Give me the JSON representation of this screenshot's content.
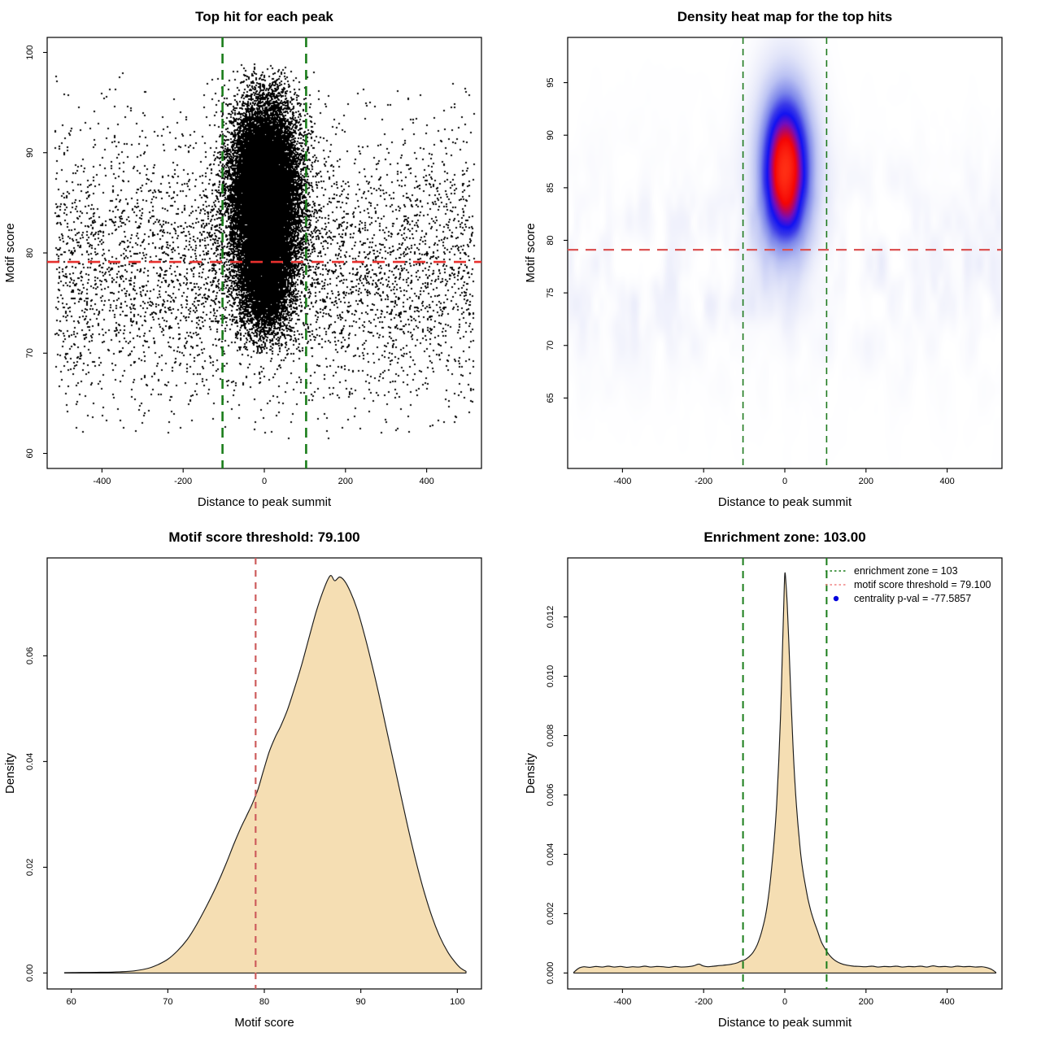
{
  "figure_background": "#ffffff",
  "colors": {
    "point_black": "#000000",
    "area_fill_wheat": "#f5deb3",
    "area_stroke": "#1a1a1a",
    "green_dashed": "#1a7d1a",
    "red_bright": "#e8312e",
    "red_soft": "#dc5454",
    "red_indian": "#cd5c5c",
    "legend_red": "#f08080",
    "legend_blue": "#0000dd",
    "axis_black": "#000000"
  },
  "chart_data": [
    {
      "panel": "top-left",
      "type": "scatter",
      "title": "Top hit for each peak",
      "xlabel": "Distance to peak summit",
      "ylabel": "Motif score",
      "xlim": [
        -535,
        535
      ],
      "ylim": [
        58.5,
        101.5
      ],
      "xticks": [
        {
          "v": -400,
          "label": "-400"
        },
        {
          "v": -200,
          "label": "-200"
        },
        {
          "v": 0,
          "label": "0"
        },
        {
          "v": 200,
          "label": "200"
        },
        {
          "v": 400,
          "label": "400"
        }
      ],
      "yticks": [
        {
          "v": 60,
          "label": "60"
        },
        {
          "v": 70,
          "label": "70"
        },
        {
          "v": 80,
          "label": "80"
        },
        {
          "v": 90,
          "label": "90"
        },
        {
          "v": 100,
          "label": "100"
        }
      ],
      "lines": [
        {
          "kind": "vline",
          "v": -103,
          "color": "#1a7d1a",
          "width": 2.6,
          "dash": [
            12,
            8
          ]
        },
        {
          "kind": "vline",
          "v": 103,
          "color": "#1a7d1a",
          "width": 2.6,
          "dash": [
            12,
            8
          ]
        },
        {
          "kind": "hline",
          "v": 79.1,
          "color": "#e8312e",
          "width": 2.6,
          "dash": [
            15,
            10
          ]
        }
      ],
      "generator": {
        "seed": 1234,
        "x_range": [
          -516,
          516
        ],
        "clusters": [
          {
            "n": 15000,
            "mx": 0,
            "sx": 38,
            "my": 86.4,
            "sy": 4.0,
            "ymin": 73,
            "ymax": 99
          },
          {
            "n": 6000,
            "mx": 1,
            "sx": 52,
            "my": 84.5,
            "sy": 5.5,
            "ymin": 70,
            "ymax": 98.5
          },
          {
            "n": 4500,
            "mx": 0,
            "sx": 30,
            "my": 77.2,
            "sy": 2.6,
            "ymin": 70,
            "ymax": 85
          },
          {
            "n": 4200,
            "uniform_x": true,
            "my": 78.5,
            "sy": 6.8,
            "ymin": 61.5,
            "ymax": 97.5
          },
          {
            "n": 280,
            "uniform_x": true,
            "uniform_y": true,
            "ymin": 62,
            "ymax": 98
          }
        ]
      }
    },
    {
      "panel": "top-right",
      "type": "heatmap",
      "title": "Density heat map for the top hits",
      "xlabel": "Distance to peak summit",
      "ylabel": "Motif score",
      "xlim": [
        -535,
        535
      ],
      "ylim": [
        58.3,
        99.3
      ],
      "xticks": [
        {
          "v": -400,
          "label": "-400"
        },
        {
          "v": -200,
          "label": "-200"
        },
        {
          "v": 0,
          "label": "0"
        },
        {
          "v": 200,
          "label": "200"
        },
        {
          "v": 400,
          "label": "400"
        }
      ],
      "yticks": [
        {
          "v": 65,
          "label": "65"
        },
        {
          "v": 70,
          "label": "70"
        },
        {
          "v": 75,
          "label": "75"
        },
        {
          "v": 80,
          "label": "80"
        },
        {
          "v": 85,
          "label": "85"
        },
        {
          "v": 90,
          "label": "90"
        },
        {
          "v": 95,
          "label": "95"
        }
      ],
      "lines": [
        {
          "kind": "vline",
          "v": -103,
          "color": "#1f7a1f",
          "width": 1.6,
          "dash": [
            8,
            6
          ]
        },
        {
          "kind": "vline",
          "v": 103,
          "color": "#1f7a1f",
          "width": 1.6,
          "dash": [
            8,
            6
          ]
        },
        {
          "kind": "hline",
          "v": 79.1,
          "color": "#dc5454",
          "width": 2.2,
          "dash": [
            13,
            9
          ]
        }
      ],
      "density_model": {
        "blob": {
          "cx": 2,
          "cy": 86.8,
          "sx": 45,
          "sy": 5.35
        },
        "band": {
          "center": 77.3,
          "sigma": 6.3,
          "amp": 0.075,
          "broad_amp": 0.018,
          "broad_sigma": 9.5
        },
        "noise": {
          "cell_x": 16,
          "cell_y": 55,
          "cell_x2": 8,
          "cell_y2": 26,
          "threshold": 0.22,
          "gain": 1.15
        }
      },
      "colormap": [
        [
          0.0,
          "#ffffff"
        ],
        [
          0.05,
          "#f2f3fc"
        ],
        [
          0.12,
          "#e2e5f9"
        ],
        [
          0.25,
          "#bcc3f3"
        ],
        [
          0.4,
          "#7c86ea"
        ],
        [
          0.52,
          "#3a3ae8"
        ],
        [
          0.62,
          "#1212f2"
        ],
        [
          0.72,
          "#6e0ec0"
        ],
        [
          0.8,
          "#b80560"
        ],
        [
          0.87,
          "#f50505"
        ],
        [
          1.0,
          "#ff2e14"
        ]
      ]
    },
    {
      "panel": "bottom-left",
      "type": "area",
      "title": "Motif score threshold: 79.100",
      "xlabel": "Motif score",
      "ylabel": "Density",
      "xlim": [
        57.5,
        102.5
      ],
      "ylim": [
        -0.00302,
        0.07852
      ],
      "xticks": [
        {
          "v": 60,
          "label": "60"
        },
        {
          "v": 70,
          "label": "70"
        },
        {
          "v": 80,
          "label": "80"
        },
        {
          "v": 90,
          "label": "90"
        },
        {
          "v": 100,
          "label": "100"
        }
      ],
      "yticks": [
        {
          "v": 0,
          "label": "0.00"
        },
        {
          "v": 0.02,
          "label": "0.02"
        },
        {
          "v": 0.04,
          "label": "0.04"
        },
        {
          "v": 0.06,
          "label": "0.06"
        }
      ],
      "lines": [
        {
          "kind": "vline",
          "v": 79.1,
          "color": "#cd5c5c",
          "width": 2.2,
          "dash": [
            8,
            7
          ]
        }
      ],
      "curve": [
        [
          59.3,
          8e-05
        ],
        [
          61,
          0.0001
        ],
        [
          63,
          0.00013
        ],
        [
          65,
          0.00022
        ],
        [
          66.5,
          0.0004
        ],
        [
          68,
          0.0009
        ],
        [
          69,
          0.0016
        ],
        [
          70,
          0.0026
        ],
        [
          71,
          0.0042
        ],
        [
          72,
          0.0063
        ],
        [
          73,
          0.0092
        ],
        [
          74,
          0.0126
        ],
        [
          75,
          0.0163
        ],
        [
          76,
          0.0205
        ],
        [
          76.8,
          0.0242
        ],
        [
          77.5,
          0.0272
        ],
        [
          78.1,
          0.0295
        ],
        [
          78.7,
          0.0318
        ],
        [
          79.3,
          0.0345
        ],
        [
          79.9,
          0.0382
        ],
        [
          80.5,
          0.0418
        ],
        [
          81.1,
          0.0445
        ],
        [
          81.7,
          0.0467
        ],
        [
          82.4,
          0.0498
        ],
        [
          83.1,
          0.0537
        ],
        [
          83.9,
          0.0585
        ],
        [
          84.7,
          0.0639
        ],
        [
          85.4,
          0.0685
        ],
        [
          86,
          0.0718
        ],
        [
          86.5,
          0.0741
        ],
        [
          86.9,
          0.0752
        ],
        [
          87.3,
          0.0742
        ],
        [
          87.8,
          0.0749
        ],
        [
          88.3,
          0.0742
        ],
        [
          88.9,
          0.0722
        ],
        [
          89.6,
          0.0689
        ],
        [
          90.3,
          0.0645
        ],
        [
          91,
          0.0595
        ],
        [
          91.8,
          0.0533
        ],
        [
          92.6,
          0.0466
        ],
        [
          93.4,
          0.0399
        ],
        [
          94.2,
          0.0332
        ],
        [
          95,
          0.0266
        ],
        [
          95.8,
          0.0205
        ],
        [
          96.6,
          0.0151
        ],
        [
          97.4,
          0.0105
        ],
        [
          98.2,
          0.0068
        ],
        [
          99,
          0.004
        ],
        [
          99.7,
          0.0022
        ],
        [
          100.3,
          0.001
        ],
        [
          100.9,
          0.0003
        ]
      ]
    },
    {
      "panel": "bottom-right",
      "type": "area",
      "title": "Enrichment zone: 103.00",
      "xlabel": "Distance to peak summit",
      "ylabel": "Density",
      "xlim": [
        -535,
        535
      ],
      "ylim": [
        -0.000538,
        0.013988
      ],
      "xticks": [
        {
          "v": -400,
          "label": "-400"
        },
        {
          "v": -200,
          "label": "-200"
        },
        {
          "v": 0,
          "label": "0"
        },
        {
          "v": 200,
          "label": "200"
        },
        {
          "v": 400,
          "label": "400"
        }
      ],
      "yticks": [
        {
          "v": 0,
          "label": "0.000"
        },
        {
          "v": 0.002,
          "label": "0.002"
        },
        {
          "v": 0.004,
          "label": "0.004"
        },
        {
          "v": 0.006,
          "label": "0.006"
        },
        {
          "v": 0.008,
          "label": "0.008"
        },
        {
          "v": 0.01,
          "label": "0.010"
        },
        {
          "v": 0.012,
          "label": "0.012"
        }
      ],
      "lines": [
        {
          "kind": "vline",
          "v": -103,
          "color": "#1a7d1a",
          "width": 2.0,
          "dash": [
            9,
            7
          ]
        },
        {
          "kind": "vline",
          "v": 103,
          "color": "#1a7d1a",
          "width": 2.0,
          "dash": [
            9,
            7
          ]
        }
      ],
      "legend": {
        "items": [
          {
            "type": "line",
            "color": "#1a7d1a",
            "dash": [
              2.5,
              3
            ],
            "label": "enrichment zone = 103"
          },
          {
            "type": "line",
            "color": "#f08080",
            "dash": [
              2.5,
              3
            ],
            "label": "motif score threshold = 79.100"
          },
          {
            "type": "point",
            "color": "#0000dd",
            "label": "centrality p-val = -77.5857"
          }
        ]
      },
      "curve": [
        [
          -520,
          2e-05
        ],
        [
          -512,
          0.00012
        ],
        [
          -505,
          0.00018
        ],
        [
          -495,
          0.00021
        ],
        [
          -480,
          0.00019
        ],
        [
          -465,
          0.00022
        ],
        [
          -450,
          0.0002
        ],
        [
          -435,
          0.00023
        ],
        [
          -420,
          0.0002
        ],
        [
          -405,
          0.00022
        ],
        [
          -390,
          0.00019
        ],
        [
          -375,
          0.00021
        ],
        [
          -360,
          0.0002
        ],
        [
          -345,
          0.00023
        ],
        [
          -330,
          0.0002
        ],
        [
          -315,
          0.00022
        ],
        [
          -300,
          0.00021
        ],
        [
          -285,
          0.00019
        ],
        [
          -270,
          0.00022
        ],
        [
          -255,
          0.0002
        ],
        [
          -240,
          0.00021
        ],
        [
          -225,
          0.00024
        ],
        [
          -212,
          0.0003
        ],
        [
          -202,
          0.00024
        ],
        [
          -190,
          0.00021
        ],
        [
          -175,
          0.00023
        ],
        [
          -160,
          0.00025
        ],
        [
          -145,
          0.00027
        ],
        [
          -130,
          0.0003
        ],
        [
          -118,
          0.00034
        ],
        [
          -108,
          0.0004
        ],
        [
          -98,
          0.00045
        ],
        [
          -88,
          0.00055
        ],
        [
          -78,
          0.0007
        ],
        [
          -68,
          0.00095
        ],
        [
          -58,
          0.00135
        ],
        [
          -48,
          0.0019
        ],
        [
          -40,
          0.0026
        ],
        [
          -32,
          0.0036
        ],
        [
          -26,
          0.0045
        ],
        [
          -20,
          0.0057
        ],
        [
          -15,
          0.0071
        ],
        [
          -10,
          0.0089
        ],
        [
          -6,
          0.0108
        ],
        [
          -3,
          0.0122
        ],
        [
          0,
          0.01345
        ],
        [
          3,
          0.0131
        ],
        [
          6,
          0.0124
        ],
        [
          10,
          0.0111
        ],
        [
          15,
          0.0093
        ],
        [
          20,
          0.0077
        ],
        [
          25,
          0.0064
        ],
        [
          30,
          0.0054
        ],
        [
          35,
          0.0046
        ],
        [
          40,
          0.0039
        ],
        [
          45,
          0.0034
        ],
        [
          50,
          0.003
        ],
        [
          57,
          0.0025
        ],
        [
          65,
          0.00205
        ],
        [
          73,
          0.0017
        ],
        [
          81,
          0.0014
        ],
        [
          90,
          0.00105
        ],
        [
          100,
          0.0008
        ],
        [
          110,
          0.0006
        ],
        [
          120,
          0.00046
        ],
        [
          130,
          0.00037
        ],
        [
          142,
          0.0003
        ],
        [
          155,
          0.00026
        ],
        [
          170,
          0.00023
        ],
        [
          185,
          0.00022
        ],
        [
          200,
          0.00021
        ],
        [
          215,
          0.00023
        ],
        [
          230,
          0.0002
        ],
        [
          245,
          0.00022
        ],
        [
          260,
          0.00021
        ],
        [
          275,
          0.00023
        ],
        [
          290,
          0.0002
        ],
        [
          305,
          0.00022
        ],
        [
          320,
          0.00021
        ],
        [
          335,
          0.00023
        ],
        [
          350,
          0.0002
        ],
        [
          365,
          0.00024
        ],
        [
          380,
          0.00021
        ],
        [
          395,
          0.00022
        ],
        [
          410,
          0.0002
        ],
        [
          425,
          0.00023
        ],
        [
          440,
          0.00021
        ],
        [
          455,
          0.00022
        ],
        [
          470,
          0.0002
        ],
        [
          485,
          0.00021
        ],
        [
          495,
          0.00019
        ],
        [
          505,
          0.00015
        ],
        [
          512,
          0.0001
        ],
        [
          520,
          2e-05
        ]
      ]
    }
  ]
}
